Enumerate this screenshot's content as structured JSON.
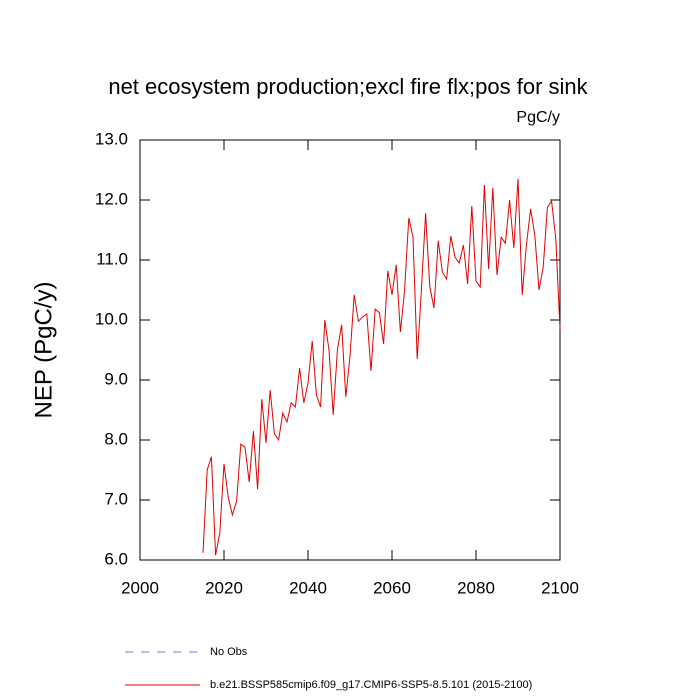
{
  "chart_data": {
    "type": "line",
    "title": "net ecosystem production;excl fire flx;pos for sink",
    "units": "PgC/y",
    "y_label": "NEP  (PgC/y)",
    "x": [
      2015,
      2016,
      2017,
      2018,
      2019,
      2020,
      2021,
      2022,
      2023,
      2024,
      2025,
      2026,
      2027,
      2028,
      2029,
      2030,
      2031,
      2032,
      2033,
      2034,
      2035,
      2036,
      2037,
      2038,
      2039,
      2040,
      2041,
      2042,
      2043,
      2044,
      2045,
      2046,
      2047,
      2048,
      2049,
      2050,
      2051,
      2052,
      2053,
      2054,
      2055,
      2056,
      2057,
      2058,
      2059,
      2060,
      2061,
      2062,
      2063,
      2064,
      2065,
      2066,
      2067,
      2068,
      2069,
      2070,
      2071,
      2072,
      2073,
      2074,
      2075,
      2076,
      2077,
      2078,
      2079,
      2080,
      2081,
      2082,
      2083,
      2084,
      2085,
      2086,
      2087,
      2088,
      2089,
      2090,
      2091,
      2092,
      2093,
      2094,
      2095,
      2096,
      2097,
      2098,
      2099,
      2100
    ],
    "series": [
      {
        "name": "b.e21.BSSP585cmip6.f09_g17.CMIP6-SSP5-8.5.101 (2015-2100)",
        "color": "#e00000",
        "values": [
          6.12,
          7.5,
          7.72,
          6.08,
          6.45,
          7.6,
          7.05,
          6.75,
          6.98,
          7.93,
          7.88,
          7.3,
          8.15,
          7.18,
          8.68,
          7.95,
          8.83,
          8.1,
          8.0,
          8.45,
          8.3,
          8.62,
          8.55,
          9.2,
          8.62,
          8.95,
          9.65,
          8.75,
          8.55,
          10.0,
          9.5,
          8.42,
          9.5,
          9.92,
          8.72,
          9.4,
          10.42,
          9.98,
          10.05,
          10.1,
          9.15,
          10.18,
          10.12,
          9.6,
          10.82,
          10.42,
          10.92,
          9.8,
          10.5,
          11.7,
          11.38,
          9.35,
          10.5,
          11.78,
          10.55,
          10.2,
          11.32,
          10.8,
          10.68,
          11.4,
          11.05,
          10.95,
          11.25,
          10.6,
          11.9,
          10.65,
          10.55,
          12.25,
          10.85,
          12.2,
          10.75,
          11.38,
          11.28,
          12.0,
          11.2,
          12.35,
          10.42,
          11.25,
          11.85,
          11.42,
          10.5,
          10.88,
          11.88,
          11.98,
          11.35,
          9.85
        ]
      }
    ],
    "extra_legend": {
      "name": "No Obs",
      "color": "#7777ff",
      "dashed": true
    },
    "xlim": [
      2000,
      2100
    ],
    "xticks": [
      2000,
      2020,
      2040,
      2060,
      2080,
      2100
    ],
    "ylim": [
      6,
      13
    ],
    "yticks": [
      {
        "value": 6,
        "label": "6.0"
      },
      {
        "value": 7,
        "label": "7.0"
      },
      {
        "value": 8,
        "label": "8.0"
      },
      {
        "value": 9,
        "label": "9.0"
      },
      {
        "value": 10,
        "label": "10.0"
      },
      {
        "value": 11,
        "label": "11.0"
      },
      {
        "value": 12,
        "label": "12.0"
      },
      {
        "value": 13,
        "label": "13.0"
      }
    ]
  }
}
